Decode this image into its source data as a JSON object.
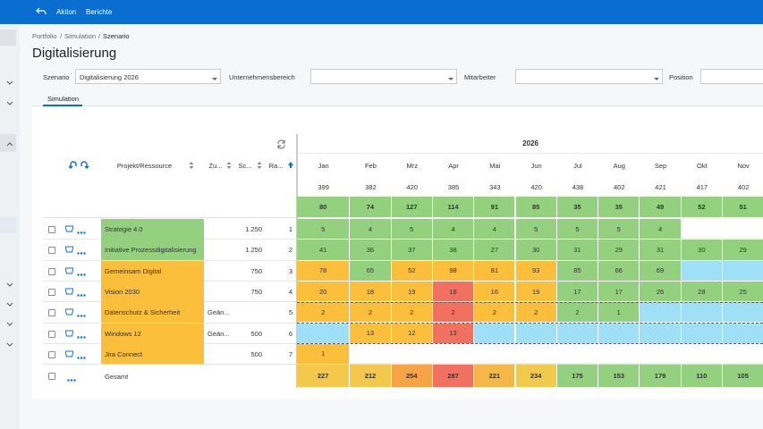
{
  "nav": {
    "items": [
      "Aktion",
      "Berichte"
    ]
  },
  "breadcrumb": {
    "items": [
      "Portfolio",
      "Simulation",
      "Szenario"
    ],
    "separator": "/"
  },
  "title": "Digitalisierung",
  "filters": [
    {
      "label": "Szenario",
      "value": "Digitalisierung 2026"
    },
    {
      "label": "Unternehmensbereich"
    },
    {
      "label": "Mitarbeiter"
    },
    {
      "label": "Position"
    }
  ],
  "tabs": [
    "Simulation"
  ],
  "table": {
    "columns": [
      "Projekt/Ressource",
      "Zu...",
      "Sc...",
      "Ra..."
    ],
    "year": "2026",
    "months": [
      "Jan",
      "Feb",
      "Mrz",
      "Apr",
      "Mai",
      "Jun",
      "Jul",
      "Aug",
      "Sep",
      "Okt",
      "Nov"
    ],
    "capacity": [
      399,
      382,
      420,
      385,
      343,
      420,
      438,
      402,
      421,
      417,
      402
    ],
    "demand": [
      80,
      74,
      127,
      114,
      91,
      85,
      35,
      35,
      49,
      52,
      51
    ],
    "demand_color": "#93d17f",
    "rows": [
      {
        "name": "Strategie 4.0",
        "sc": "1.250",
        "rank": 1,
        "color": "#93d17f",
        "values": [
          5,
          4,
          5,
          4,
          4,
          5,
          5,
          5,
          4,
          null,
          null
        ],
        "colors": [
          "#93d17f",
          "#93d17f",
          "#93d17f",
          "#93d17f",
          "#93d17f",
          "#93d17f",
          "#93d17f",
          "#93d17f",
          "#93d17f",
          null,
          null
        ]
      },
      {
        "name": "Initiative Prozessdigitalisierung",
        "sc": "1.250",
        "rank": 2,
        "color": "#93d17f",
        "values": [
          41,
          36,
          37,
          38,
          27,
          30,
          31,
          29,
          31,
          30,
          29
        ],
        "colors": [
          "#93d17f",
          "#93d17f",
          "#93d17f",
          "#93d17f",
          "#93d17f",
          "#93d17f",
          "#93d17f",
          "#93d17f",
          "#93d17f",
          "#93d17f",
          "#93d17f"
        ]
      },
      {
        "name": "Gemeinsam Digital",
        "sc": "750",
        "rank": 3,
        "color": "#fbbf3b",
        "values": [
          78,
          65,
          52,
          98,
          81,
          93,
          85,
          66,
          69,
          null,
          null
        ],
        "colors": [
          "#fbbf3b",
          "#93d17f",
          "#fbbf3b",
          "#fbbf3b",
          "#fbbf3b",
          "#fbbf3b",
          "#93d17f",
          "#93d17f",
          "#93d17f",
          "#9fe0f7",
          "#9fe0f7"
        ]
      },
      {
        "name": "Vision 2030",
        "sc": "750",
        "rank": 4,
        "color": "#fbbf3b",
        "values": [
          20,
          18,
          19,
          18,
          16,
          19,
          17,
          17,
          26,
          28,
          25
        ],
        "colors": [
          "#fbbf3b",
          "#fbbf3b",
          "#fbbf3b",
          "#f2705f",
          "#fbbf3b",
          "#fbbf3b",
          "#93d17f",
          "#93d17f",
          "#93d17f",
          "#93d17f",
          "#93d17f"
        ]
      },
      {
        "name": "Datenschutz & Sicherheit",
        "zu": "Geän...",
        "rank": 5,
        "color": "#fbbf3b",
        "values": [
          2,
          2,
          2,
          2,
          2,
          2,
          2,
          1,
          null,
          null,
          null
        ],
        "colors": [
          "#fbbf3b",
          "#fbbf3b",
          "#fbbf3b",
          "#f2705f",
          "#fbbf3b",
          "#fbbf3b",
          "#93d17f",
          "#93d17f",
          "#9fe0f7",
          "#9fe0f7",
          "#9fe0f7"
        ]
      },
      {
        "name": "Windows 12",
        "zu": "Geän...",
        "sc": "500",
        "rank": 6,
        "color": "#fbbf3b",
        "values": [
          null,
          13,
          12,
          13,
          null,
          null,
          null,
          null,
          null,
          null,
          null
        ],
        "colors": [
          "#9fe0f7",
          "#fbbf3b",
          "#fbbf3b",
          "#f2705f",
          "#9fe0f7",
          "#9fe0f7",
          "#9fe0f7",
          "#9fe0f7",
          "#9fe0f7",
          "#9fe0f7",
          "#9fe0f7"
        ]
      },
      {
        "name": "Jira Connect",
        "sc": "500",
        "rank": 7,
        "color": "#fbbf3b",
        "values": [
          1,
          null,
          null,
          null,
          null,
          null,
          null,
          null,
          null,
          null,
          null
        ],
        "colors": [
          "#fbbf3b",
          null,
          null,
          null,
          null,
          null,
          null,
          null,
          null,
          null,
          null
        ]
      }
    ],
    "total": {
      "label": "Gesamt",
      "values": [
        227,
        212,
        254,
        287,
        221,
        234,
        175,
        153,
        179,
        110,
        105
      ],
      "colors": [
        "#f3c84b",
        "#f3c84b",
        "#f7a447",
        "#f2705f",
        "#f6b746",
        "#f1c94b",
        "#93d17f",
        "#93d17f",
        "#93d17f",
        "#93d17f",
        "#93d17f"
      ]
    }
  }
}
